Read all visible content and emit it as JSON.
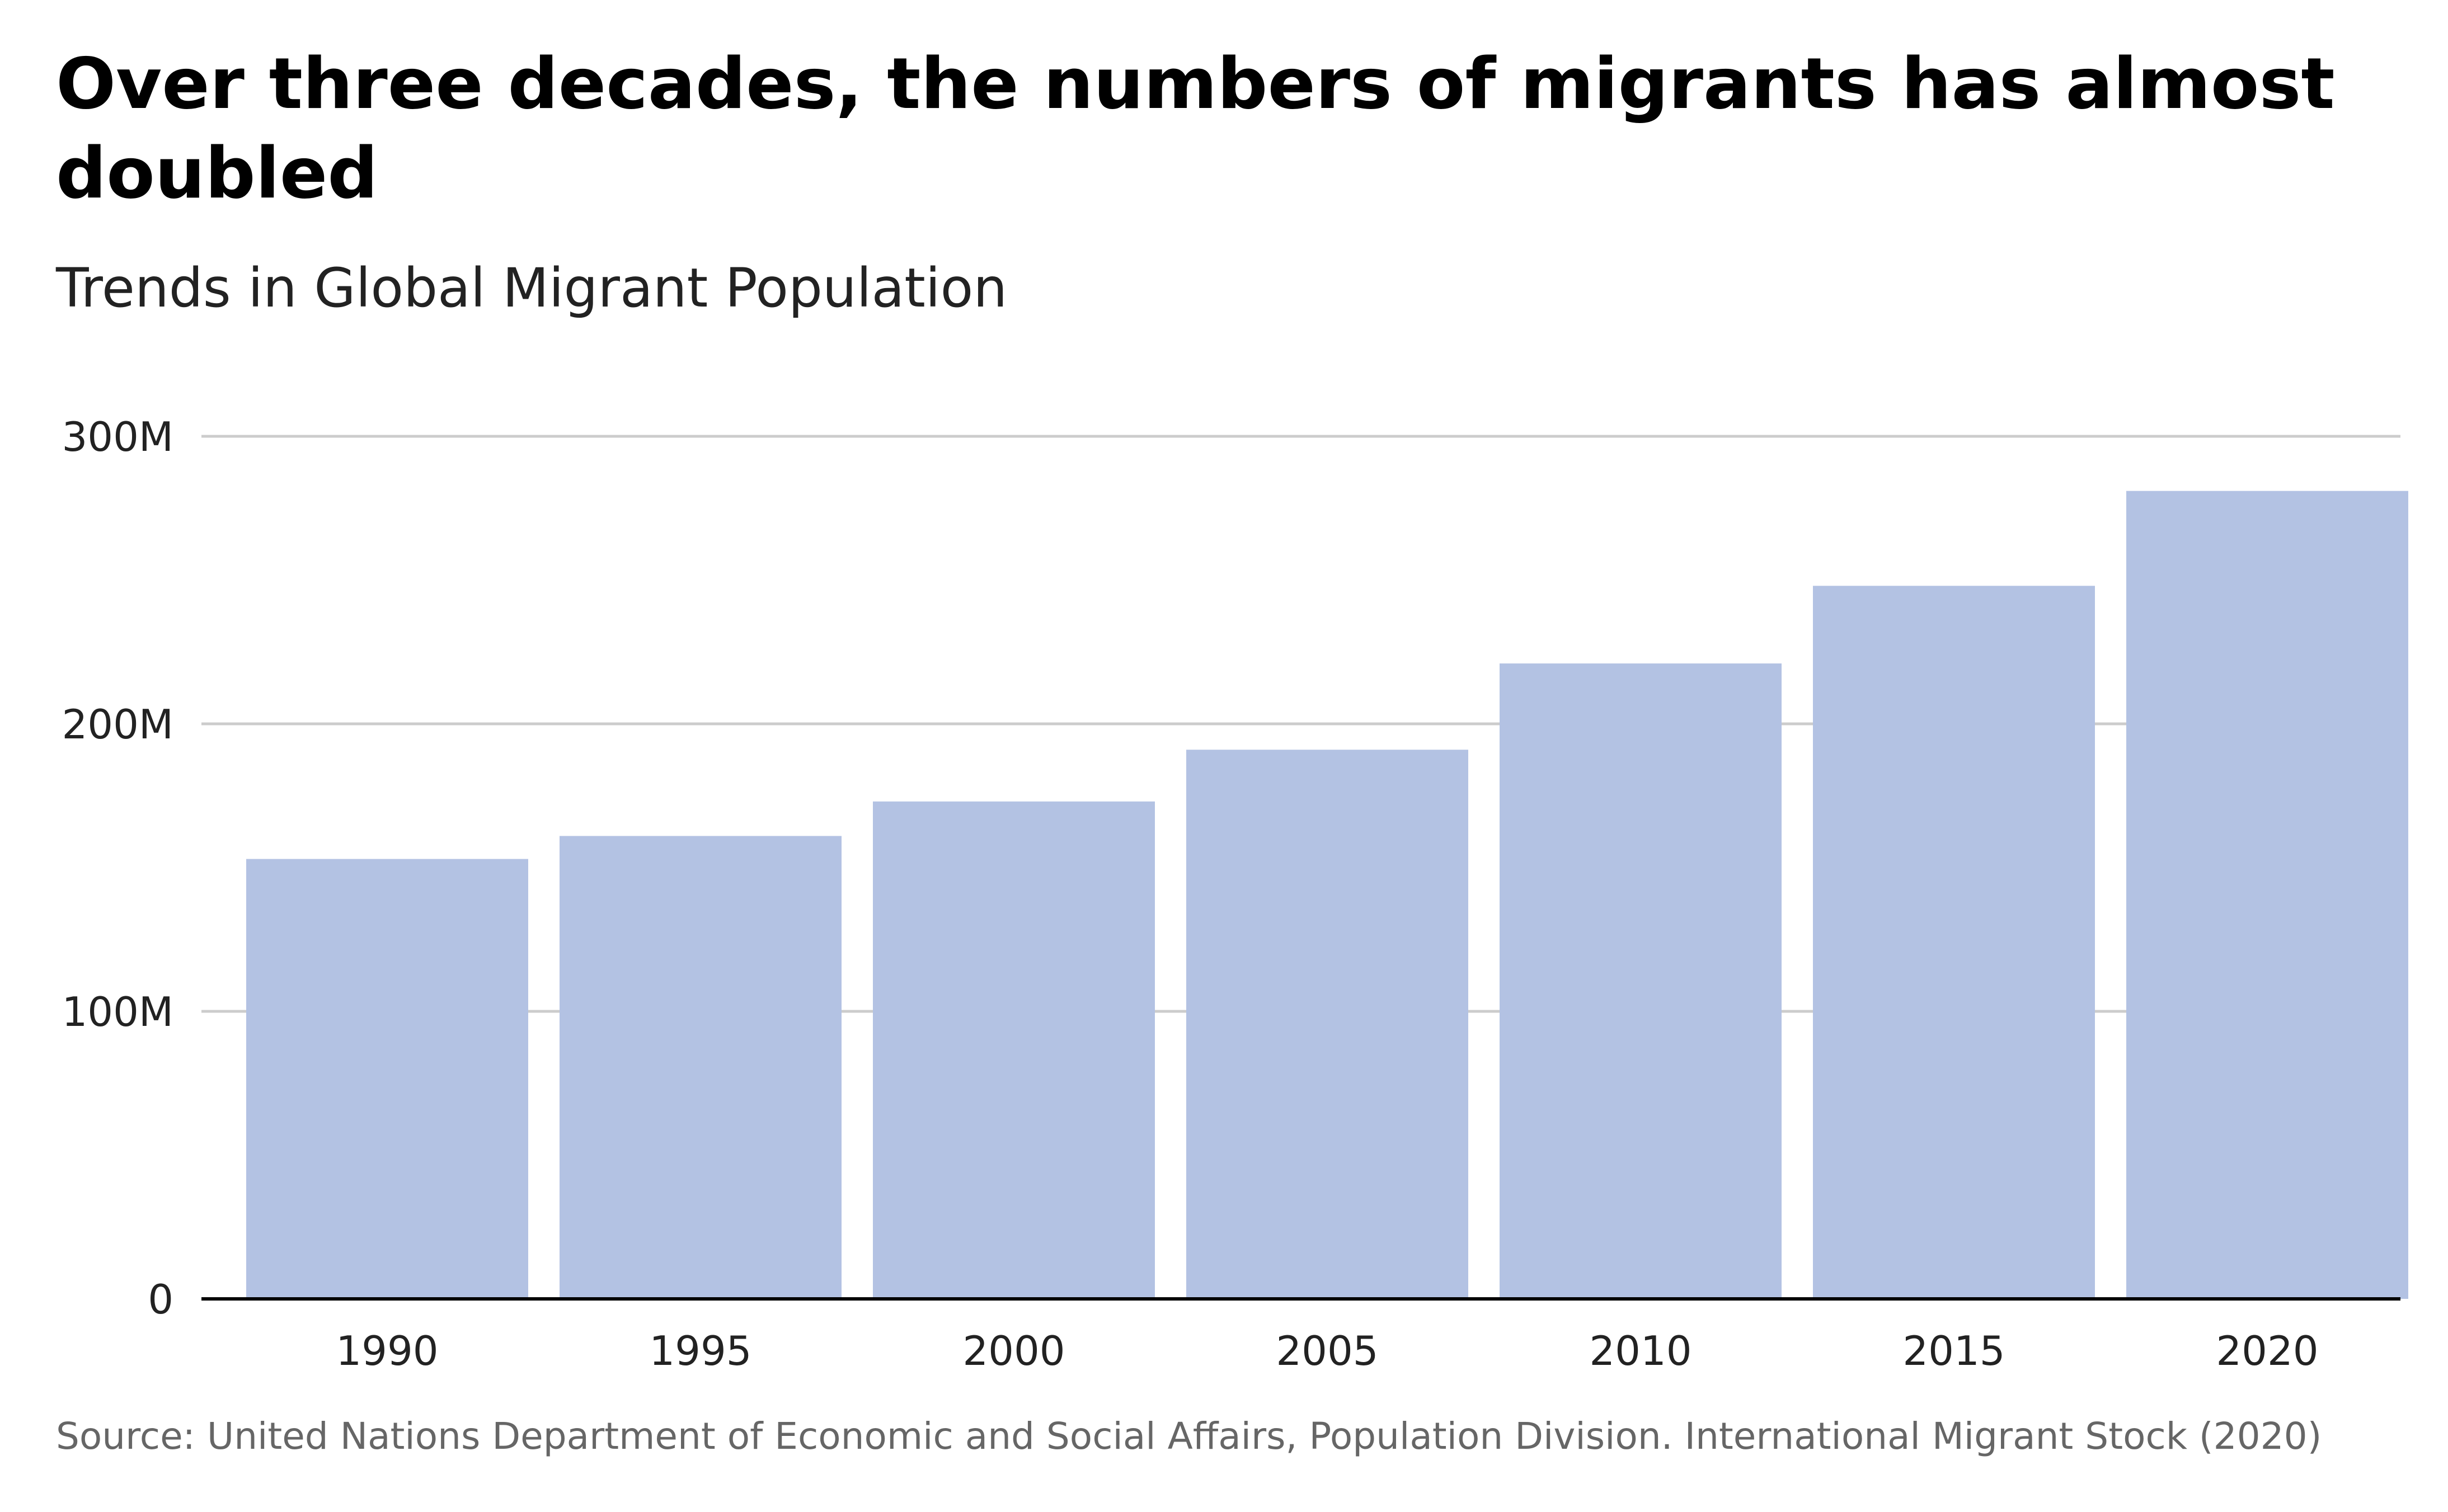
{
  "title": "Over three decades, the numbers of migrants has almost doubled",
  "subtitle": "Trends in Global Migrant Population",
  "source": "Source: United Nations Department of Economic and Social Affairs, Population Division. International Migrant Stock (2020)",
  "colors": {
    "bar": "#b3c2e3",
    "gridline": "#cccccc",
    "axis": "#000000",
    "tick_label": "#222222"
  },
  "chart_data": {
    "type": "bar",
    "categories": [
      "1990",
      "1995",
      "2000",
      "2005",
      "2010",
      "2015",
      "2020"
    ],
    "values": [
      153,
      161,
      173,
      191,
      221,
      248,
      281
    ],
    "value_unit": "millions",
    "ylim": [
      0,
      300
    ],
    "yticks": [
      0,
      100,
      200,
      300
    ],
    "ytick_labels": [
      "0",
      "100M",
      "200M",
      "300M"
    ],
    "grid": true,
    "legend": "none",
    "xlabel": "",
    "ylabel": ""
  }
}
